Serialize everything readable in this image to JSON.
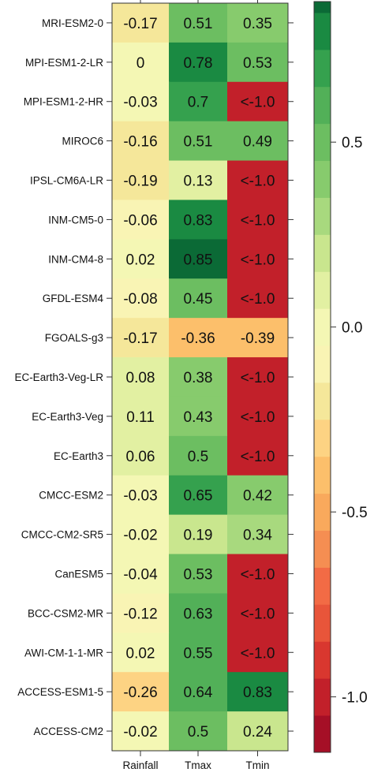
{
  "chart_data": {
    "type": "heatmap",
    "rows": [
      "MRI-ESM2-0",
      "MPI-ESM1-2-LR",
      "MPI-ESM1-2-HR",
      "MIROC6",
      "IPSL-CM6A-LR",
      "INM-CM5-0",
      "INM-CM4-8",
      "GFDL-ESM4",
      "FGOALS-g3",
      "EC-Earth3-Veg-LR",
      "EC-Earth3-Veg",
      "EC-Earth3",
      "CMCC-ESM2",
      "CMCC-CM2-SR5",
      "CanESM5",
      "BCC-CSM2-MR",
      "AWI-CM-1-1-MR",
      "ACCESS-ESM1-5",
      "ACCESS-CM2"
    ],
    "columns": [
      "Rainfall",
      "Tmax",
      "Tmin"
    ],
    "values": [
      [
        -0.17,
        0.51,
        0.35
      ],
      [
        0,
        0.78,
        0.53
      ],
      [
        -0.03,
        0.7,
        -1.0
      ],
      [
        -0.16,
        0.51,
        0.49
      ],
      [
        -0.19,
        0.13,
        -1.0
      ],
      [
        -0.06,
        0.83,
        -1.0
      ],
      [
        0.02,
        0.85,
        -1.0
      ],
      [
        -0.08,
        0.45,
        -1.0
      ],
      [
        -0.17,
        -0.36,
        -0.39
      ],
      [
        0.08,
        0.38,
        -1.0
      ],
      [
        0.11,
        0.43,
        -1.0
      ],
      [
        0.06,
        0.5,
        -1.0
      ],
      [
        -0.03,
        0.65,
        0.42
      ],
      [
        -0.02,
        0.19,
        0.34
      ],
      [
        -0.04,
        0.53,
        -1.0
      ],
      [
        -0.12,
        0.63,
        -1.0
      ],
      [
        0.02,
        0.55,
        -1.0
      ],
      [
        -0.26,
        0.64,
        0.83
      ],
      [
        -0.02,
        0.5,
        0.24
      ]
    ],
    "cell_labels": [
      [
        "-0.17",
        "0.51",
        "0.35"
      ],
      [
        "0",
        "0.78",
        "0.53"
      ],
      [
        "-0.03",
        "0.7",
        "<-1.0"
      ],
      [
        "-0.16",
        "0.51",
        "0.49"
      ],
      [
        "-0.19",
        "0.13",
        "<-1.0"
      ],
      [
        "-0.06",
        "0.83",
        "<-1.0"
      ],
      [
        "0.02",
        "0.85",
        "<-1.0"
      ],
      [
        "-0.08",
        "0.45",
        "<-1.0"
      ],
      [
        "-0.17",
        "-0.36",
        "-0.39"
      ],
      [
        "0.08",
        "0.38",
        "<-1.0"
      ],
      [
        "0.11",
        "0.43",
        "<-1.0"
      ],
      [
        "0.06",
        "0.5",
        "<-1.0"
      ],
      [
        "-0.03",
        "0.65",
        "0.42"
      ],
      [
        "-0.02",
        "0.19",
        "0.34"
      ],
      [
        "-0.04",
        "0.53",
        "<-1.0"
      ],
      [
        "-0.12",
        "0.63",
        "<-1.0"
      ],
      [
        "0.02",
        "0.55",
        "<-1.0"
      ],
      [
        "-0.26",
        "0.64",
        "0.83"
      ],
      [
        "-0.02",
        "0.5",
        "0.24"
      ]
    ],
    "colorbar": {
      "range": [
        -1.15,
        0.88
      ],
      "ticks": [
        -1.0,
        -0.5,
        0.0,
        0.5
      ],
      "tick_labels": [
        "-1.0",
        "-0.5",
        "0.0",
        "0.5"
      ],
      "bins": [
        {
          "from": -1.15,
          "to": -1.05,
          "color": "#a50f26"
        },
        {
          "from": -1.05,
          "to": -0.95,
          "color": "#c2202a"
        },
        {
          "from": -0.95,
          "to": -0.85,
          "color": "#d9372f"
        },
        {
          "from": -0.85,
          "to": -0.75,
          "color": "#e8553a"
        },
        {
          "from": -0.75,
          "to": -0.65,
          "color": "#f26b45"
        },
        {
          "from": -0.65,
          "to": -0.55,
          "color": "#f58e52"
        },
        {
          "from": -0.55,
          "to": -0.45,
          "color": "#f9a95c"
        },
        {
          "from": -0.45,
          "to": -0.35,
          "color": "#fcbf6b"
        },
        {
          "from": -0.35,
          "to": -0.25,
          "color": "#fdd383"
        },
        {
          "from": -0.25,
          "to": -0.15,
          "color": "#f5e79a"
        },
        {
          "from": -0.15,
          "to": -0.05,
          "color": "#f9f4b4"
        },
        {
          "from": -0.05,
          "to": 0.05,
          "color": "#f4f7b4"
        },
        {
          "from": 0.05,
          "to": 0.15,
          "color": "#e2f0a2"
        },
        {
          "from": 0.15,
          "to": 0.25,
          "color": "#c9e68e"
        },
        {
          "from": 0.25,
          "to": 0.35,
          "color": "#a8d97e"
        },
        {
          "from": 0.35,
          "to": 0.45,
          "color": "#87cb6d"
        },
        {
          "from": 0.45,
          "to": 0.55,
          "color": "#6cbe61"
        },
        {
          "from": 0.55,
          "to": 0.65,
          "color": "#52b058"
        },
        {
          "from": 0.65,
          "to": 0.75,
          "color": "#35a14e"
        },
        {
          "from": 0.75,
          "to": 0.85,
          "color": "#1a8a42"
        },
        {
          "from": 0.85,
          "to": 0.88,
          "color": "#0b6a36"
        }
      ]
    },
    "title": "",
    "xlabel": "",
    "ylabel": "",
    "grid": false,
    "legend": "colorbar right"
  }
}
